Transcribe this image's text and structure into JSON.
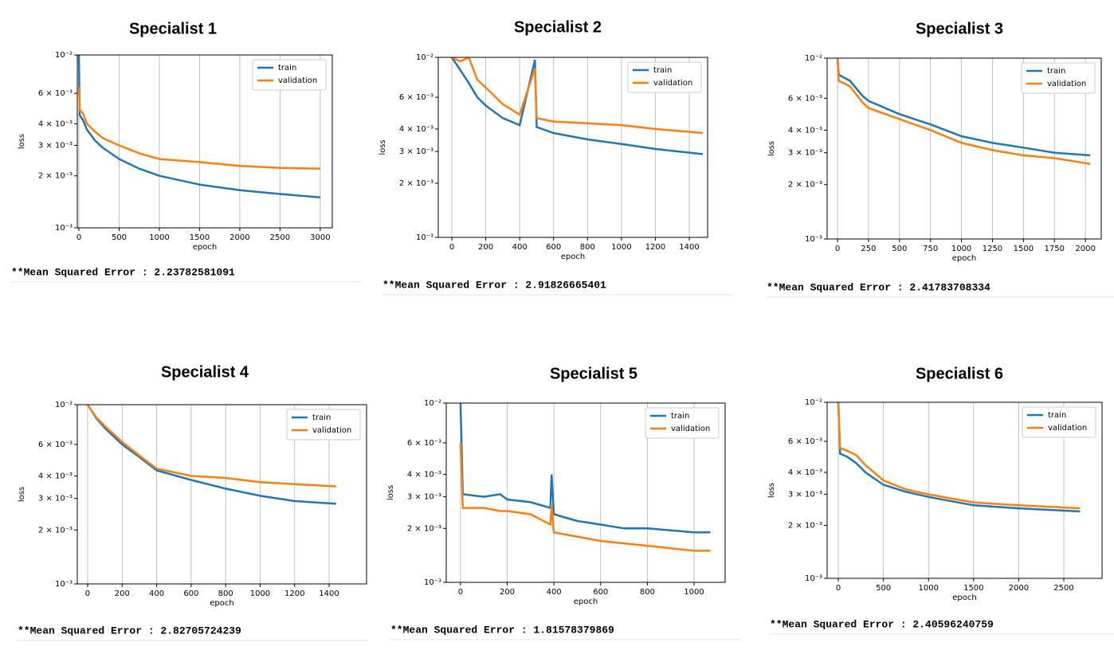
{
  "chart_data": [
    {
      "type": "line",
      "title": "Specialist 1",
      "xlabel": "epoch",
      "ylabel": "loss",
      "log_y": true,
      "grid": "x",
      "legend": "upper right",
      "annotation": "**Mean Squared Error : 2.23782581091",
      "x": [
        0,
        10,
        50,
        100,
        200,
        300,
        500,
        750,
        1000,
        1500,
        2000,
        2500,
        3000
      ],
      "series": [
        {
          "name": "train",
          "color": "#1f77b4",
          "values": [
            0.01,
            0.0045,
            0.0042,
            0.0037,
            0.0032,
            0.0029,
            0.0025,
            0.0022,
            0.002,
            0.00178,
            0.00165,
            0.00157,
            0.0015
          ]
        },
        {
          "name": "validation",
          "color": "#ff7f0e",
          "values": [
            0.0065,
            0.0048,
            0.0046,
            0.004,
            0.0036,
            0.0033,
            0.003,
            0.0027,
            0.0025,
            0.0024,
            0.00228,
            0.00222,
            0.0022
          ]
        }
      ],
      "xlim": [
        -20,
        3150
      ],
      "ylim": [
        0.001,
        0.01
      ],
      "xticks": [
        0,
        500,
        1000,
        1500,
        2000,
        2500,
        3000
      ],
      "yticks": [
        {
          "value": 0.01,
          "label": "10⁻²"
        },
        {
          "value": 0.006,
          "label": "6 × 10⁻³"
        },
        {
          "value": 0.004,
          "label": "4 × 10⁻³"
        },
        {
          "value": 0.003,
          "label": "3 × 10⁻³"
        },
        {
          "value": 0.002,
          "label": "2 × 10⁻³"
        },
        {
          "value": 0.001,
          "label": "10⁻³"
        }
      ]
    },
    {
      "type": "line",
      "title": "Specialist 2",
      "xlabel": "epoch",
      "ylabel": "loss",
      "log_y": true,
      "grid": "x",
      "legend": "upper right",
      "annotation": "**Mean Squared Error : 2.91826665401",
      "x": [
        0,
        50,
        100,
        150,
        200,
        300,
        400,
        490,
        500,
        600,
        800,
        1000,
        1200,
        1480
      ],
      "series": [
        {
          "name": "train",
          "color": "#1f77b4",
          "values": [
            0.01,
            0.0085,
            0.0072,
            0.006,
            0.0054,
            0.0046,
            0.0042,
            0.0097,
            0.0041,
            0.0038,
            0.0035,
            0.0033,
            0.0031,
            0.0029
          ]
        },
        {
          "name": "validation",
          "color": "#ff7f0e",
          "values": [
            0.01,
            0.0095,
            0.01,
            0.0075,
            0.0068,
            0.0055,
            0.0048,
            0.0087,
            0.0046,
            0.0044,
            0.0043,
            0.0042,
            0.004,
            0.0038
          ]
        }
      ],
      "xlim": [
        -80,
        1508
      ],
      "ylim": [
        0.001,
        0.01
      ],
      "xticks": [
        0,
        200,
        400,
        600,
        800,
        1000,
        1200,
        1400
      ],
      "yticks": [
        {
          "value": 0.01,
          "label": "10⁻²"
        },
        {
          "value": 0.006,
          "label": "6 × 10⁻³"
        },
        {
          "value": 0.004,
          "label": "4 × 10⁻³"
        },
        {
          "value": 0.003,
          "label": "3 × 10⁻³"
        },
        {
          "value": 0.002,
          "label": "2 × 10⁻³"
        },
        {
          "value": 0.001,
          "label": "10⁻³"
        }
      ]
    },
    {
      "type": "line",
      "title": "Specialist 3",
      "xlabel": "epoch",
      "ylabel": "loss",
      "log_y": true,
      "grid": "x",
      "legend": "upper right",
      "annotation": "**Mean Squared Error : 2.41783708334",
      "x": [
        0,
        10,
        100,
        200,
        250,
        500,
        750,
        1000,
        1250,
        1500,
        1750,
        2040
      ],
      "series": [
        {
          "name": "train",
          "color": "#1f77b4",
          "values": [
            0.01,
            0.0081,
            0.0075,
            0.0062,
            0.0058,
            0.0049,
            0.0043,
            0.0037,
            0.0034,
            0.0032,
            0.003,
            0.0029
          ]
        },
        {
          "name": "validation",
          "color": "#ff7f0e",
          "values": [
            0.01,
            0.0075,
            0.007,
            0.0057,
            0.0053,
            0.0046,
            0.004,
            0.0034,
            0.0031,
            0.0029,
            0.0028,
            0.0026
          ]
        }
      ],
      "xlim": [
        -84,
        2128
      ],
      "ylim": [
        0.001,
        0.01
      ],
      "xticks": [
        0,
        250,
        500,
        750,
        1000,
        1250,
        1500,
        1750,
        2000
      ],
      "yticks": [
        {
          "value": 0.01,
          "label": "10⁻²"
        },
        {
          "value": 0.006,
          "label": "6 × 10⁻³"
        },
        {
          "value": 0.004,
          "label": "4 × 10⁻³"
        },
        {
          "value": 0.003,
          "label": "3 × 10⁻³"
        },
        {
          "value": 0.002,
          "label": "2 × 10⁻³"
        },
        {
          "value": 0.001,
          "label": "10⁻³"
        }
      ]
    },
    {
      "type": "line",
      "title": "Specialist 4",
      "xlabel": "epoch",
      "ylabel": "loss",
      "log_y": true,
      "grid": "x",
      "legend": "upper right",
      "annotation": "**Mean Squared Error : 2.82705724239",
      "x": [
        0,
        50,
        100,
        200,
        300,
        400,
        600,
        800,
        1000,
        1200,
        1440
      ],
      "series": [
        {
          "name": "train",
          "color": "#1f77b4",
          "values": [
            0.01,
            0.0084,
            0.0074,
            0.006,
            0.0051,
            0.0043,
            0.0038,
            0.0034,
            0.0031,
            0.0029,
            0.0028
          ]
        },
        {
          "name": "validation",
          "color": "#ff7f0e",
          "values": [
            0.01,
            0.0085,
            0.0076,
            0.0062,
            0.0052,
            0.0044,
            0.004,
            0.0039,
            0.0037,
            0.0036,
            0.0035
          ]
        }
      ],
      "xlim": [
        -60,
        1617
      ],
      "ylim": [
        0.001,
        0.01
      ],
      "xticks": [
        0,
        200,
        400,
        600,
        800,
        1000,
        1200,
        1400
      ],
      "yticks": [
        {
          "value": 0.01,
          "label": "10⁻²"
        },
        {
          "value": 0.006,
          "label": "6 × 10⁻³"
        },
        {
          "value": 0.004,
          "label": "4 × 10⁻³"
        },
        {
          "value": 0.003,
          "label": "3 × 10⁻³"
        },
        {
          "value": 0.002,
          "label": "2 × 10⁻³"
        },
        {
          "value": 0.001,
          "label": "10⁻³"
        }
      ]
    },
    {
      "type": "line",
      "title": "Specialist 5",
      "xlabel": "epoch",
      "ylabel": "loss",
      "log_y": true,
      "grid": "x",
      "legend": "upper right",
      "annotation": "**Mean Squared Error : 1.81578379869",
      "x": [
        0,
        10,
        100,
        170,
        200,
        300,
        385,
        390,
        400,
        500,
        600,
        700,
        800,
        1000,
        1070
      ],
      "series": [
        {
          "name": "train",
          "color": "#1f77b4",
          "values": [
            0.01,
            0.0031,
            0.003,
            0.0031,
            0.0029,
            0.0028,
            0.0026,
            0.004,
            0.0024,
            0.0022,
            0.0021,
            0.002,
            0.002,
            0.0019,
            0.0019
          ]
        },
        {
          "name": "validation",
          "color": "#ff7f0e",
          "values": [
            0.006,
            0.0026,
            0.0026,
            0.0025,
            0.0025,
            0.0024,
            0.0021,
            0.0027,
            0.0019,
            0.0018,
            0.0017,
            0.00165,
            0.0016,
            0.0015,
            0.0015
          ]
        }
      ],
      "xlim": [
        -61,
        1133
      ],
      "ylim": [
        0.001,
        0.01
      ],
      "xticks": [
        0,
        200,
        400,
        600,
        800,
        1000
      ],
      "yticks": [
        {
          "value": 0.01,
          "label": "10⁻²"
        },
        {
          "value": 0.006,
          "label": "6 × 10⁻³"
        },
        {
          "value": 0.004,
          "label": "4 × 10⁻³"
        },
        {
          "value": 0.003,
          "label": "3 × 10⁻³"
        },
        {
          "value": 0.002,
          "label": "2 × 10⁻³"
        },
        {
          "value": 0.001,
          "label": "10⁻³"
        }
      ]
    },
    {
      "type": "line",
      "title": "Specialist 6",
      "xlabel": "epoch",
      "ylabel": "loss",
      "log_y": true,
      "grid": "x",
      "legend": "upper right",
      "annotation": "**Mean Squared Error : 2.40596240759",
      "x": [
        0,
        20,
        100,
        200,
        300,
        500,
        750,
        1000,
        1500,
        2000,
        2680
      ],
      "series": [
        {
          "name": "train",
          "color": "#1f77b4",
          "values": [
            0.01,
            0.0051,
            0.0049,
            0.0045,
            0.004,
            0.0034,
            0.0031,
            0.0029,
            0.0026,
            0.0025,
            0.0024
          ]
        },
        {
          "name": "validation",
          "color": "#ff7f0e",
          "values": [
            0.01,
            0.0055,
            0.0053,
            0.005,
            0.0044,
            0.0036,
            0.0032,
            0.003,
            0.0027,
            0.0026,
            0.0025
          ]
        }
      ],
      "xlim": [
        -124,
        2924
      ],
      "ylim": [
        0.001,
        0.01
      ],
      "xticks": [
        0,
        500,
        1000,
        1500,
        2000,
        2500
      ],
      "yticks": [
        {
          "value": 0.01,
          "label": "10⁻²"
        },
        {
          "value": 0.006,
          "label": "6 × 10⁻³"
        },
        {
          "value": 0.004,
          "label": "4 × 10⁻³"
        },
        {
          "value": 0.003,
          "label": "3 × 10⁻³"
        },
        {
          "value": 0.002,
          "label": "2 × 10⁻³"
        },
        {
          "value": 0.001,
          "label": "10⁻³"
        }
      ]
    }
  ]
}
